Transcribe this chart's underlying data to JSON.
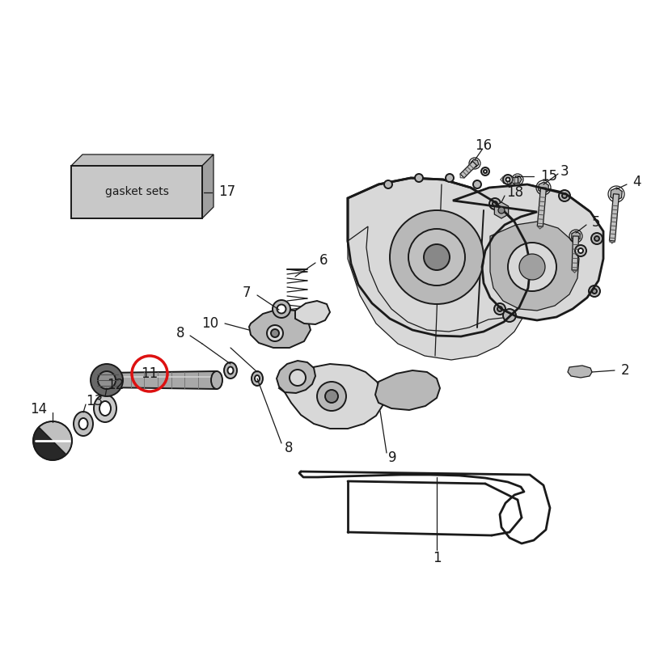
{
  "bg_color": "#ffffff",
  "lc": "#1a1a1a",
  "red": "#dd1111",
  "fill_light": "#d8d8d8",
  "fill_mid": "#b8b8b8",
  "fill_dark": "#707070",
  "fill_white": "#ffffff",
  "gasket_label": "gasket sets",
  "lw_main": 1.4,
  "lw_thin": 0.9,
  "lw_thick": 2.0,
  "fs": 12
}
